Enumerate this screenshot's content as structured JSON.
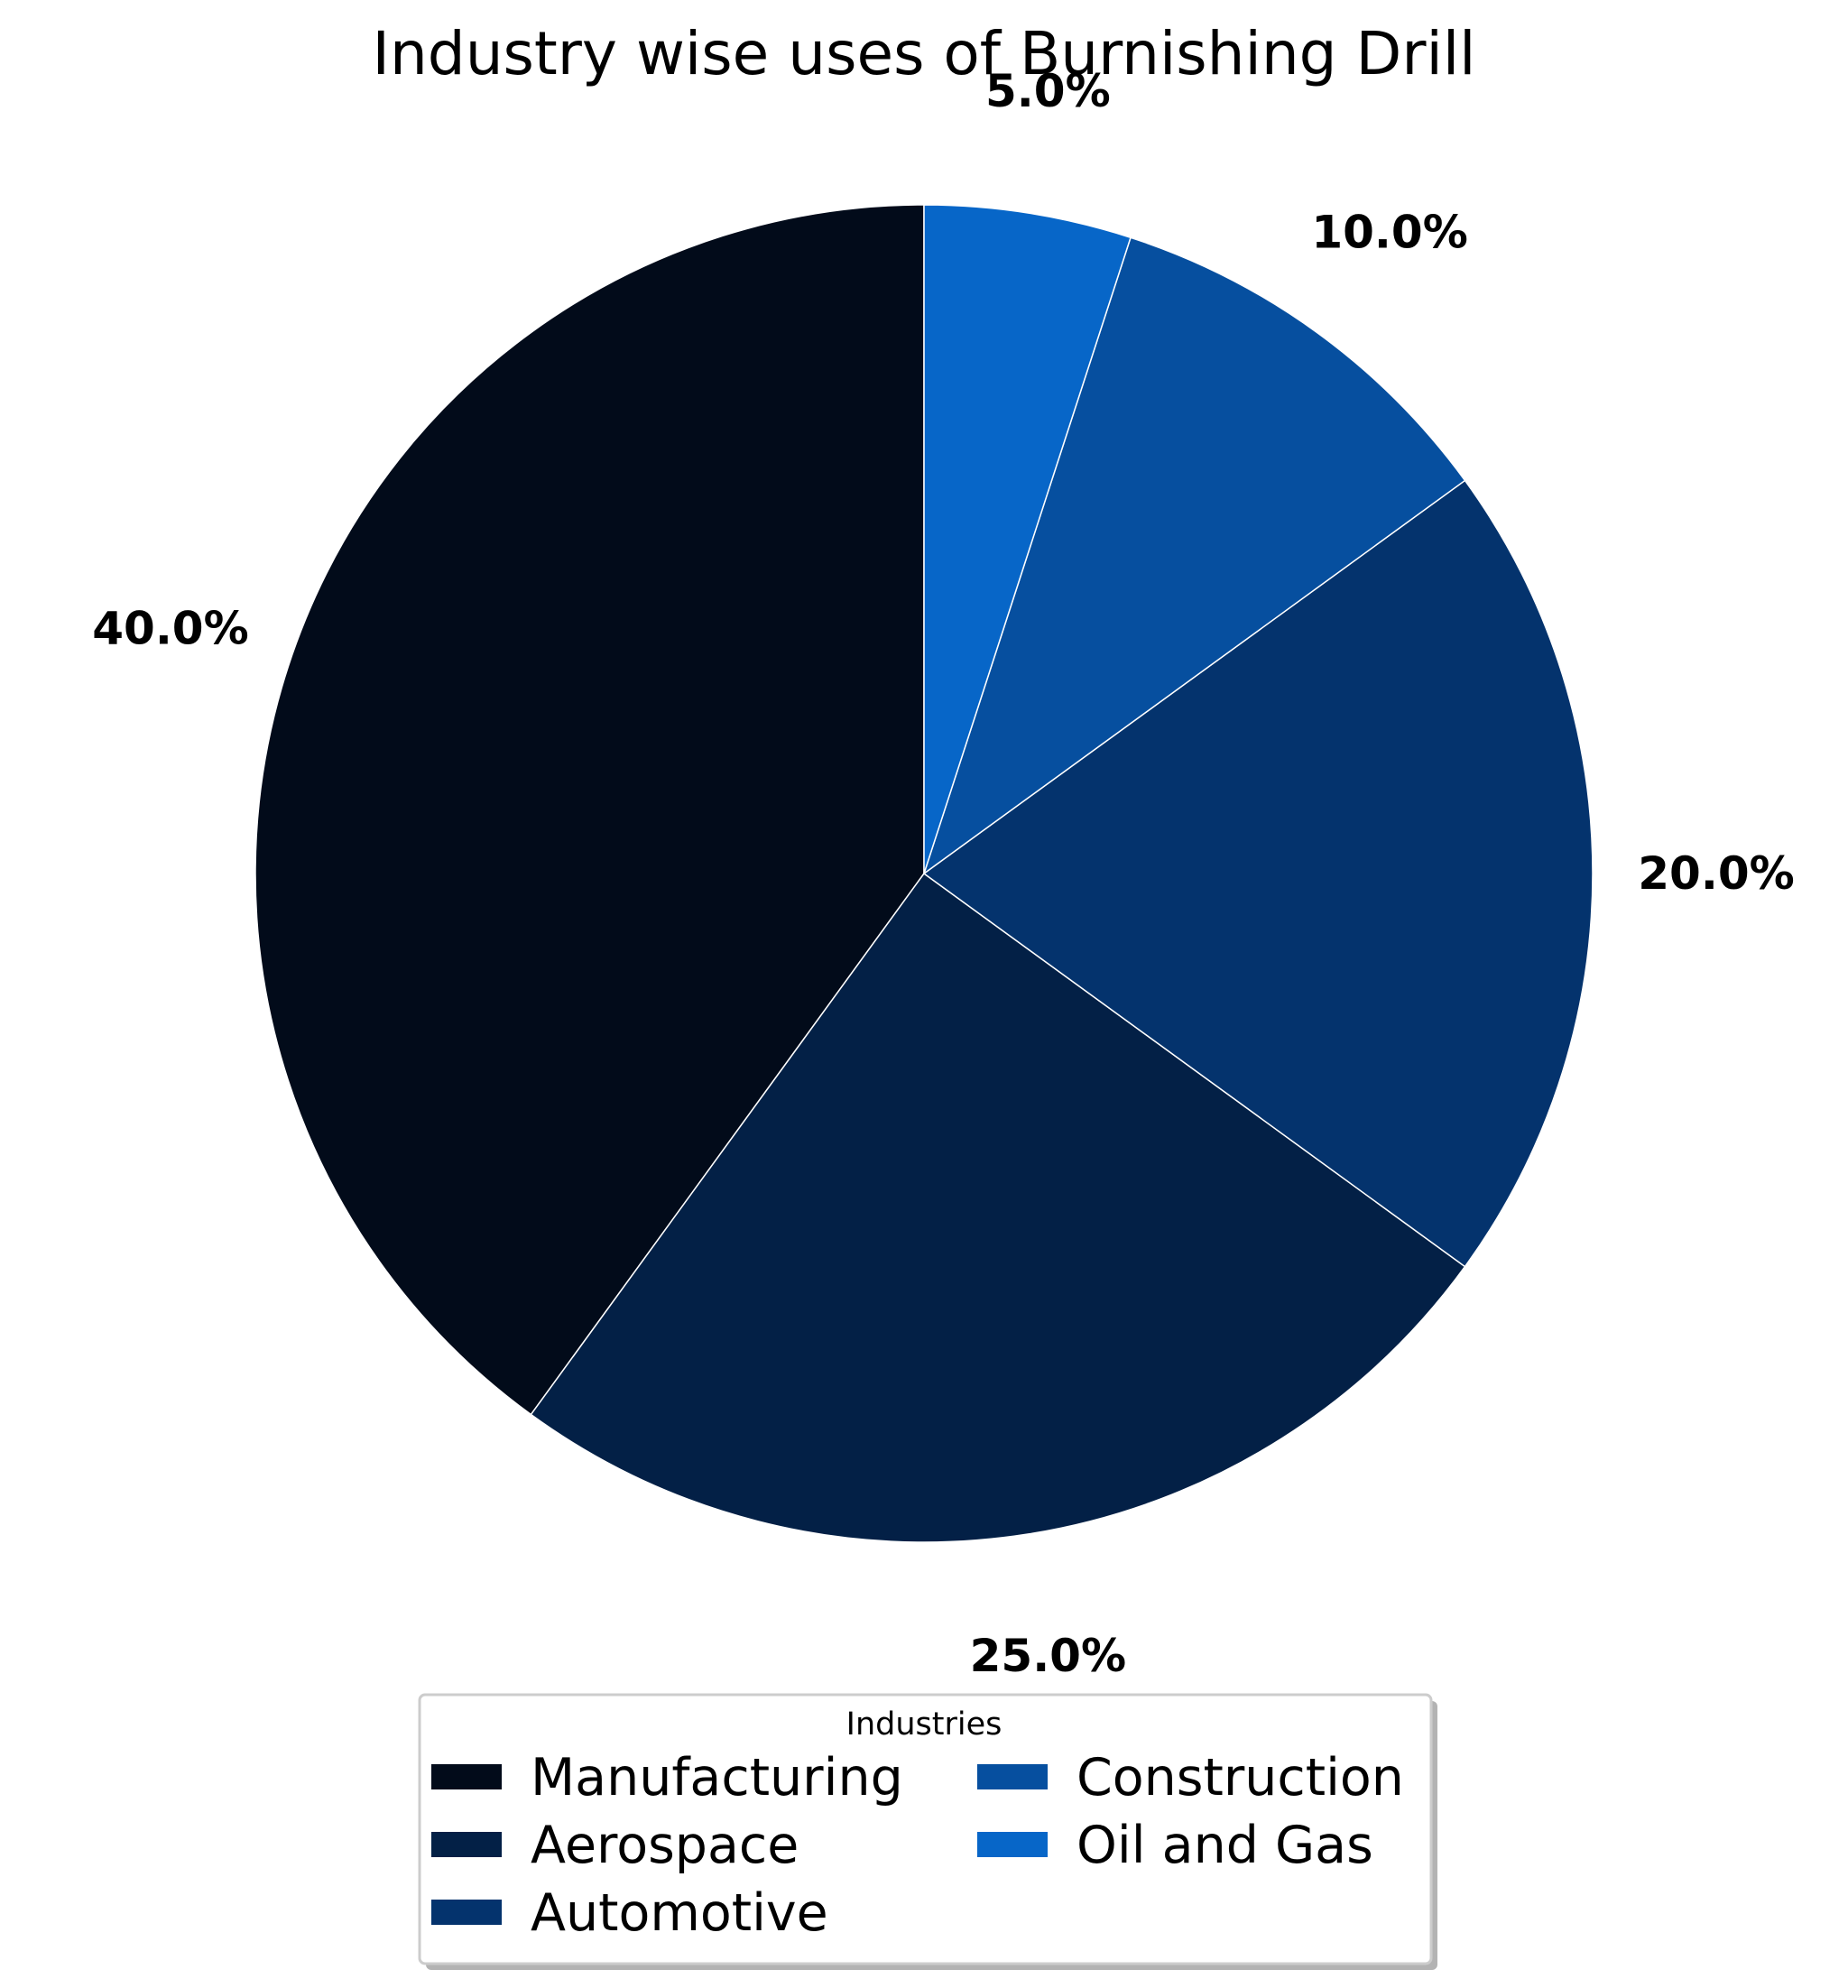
{
  "chart_data": {
    "type": "pie",
    "title": "Industry wise uses of Burnishing Drill",
    "categories": [
      "Manufacturing",
      "Aerospace",
      "Automotive",
      "Construction",
      "Oil and Gas"
    ],
    "values": [
      40,
      25,
      20,
      10,
      5
    ],
    "labels": [
      "40.0%",
      "25.0%",
      "20.0%",
      "10.0%",
      "5.0%"
    ],
    "colors": [
      "#020b1a",
      "#032046",
      "#04336d",
      "#064f9f",
      "#0766c8"
    ],
    "start_angle_deg": 90,
    "direction": "counterclockwise",
    "legend": {
      "title": "Industries",
      "placement": "bottom-center",
      "columns": 2
    }
  }
}
